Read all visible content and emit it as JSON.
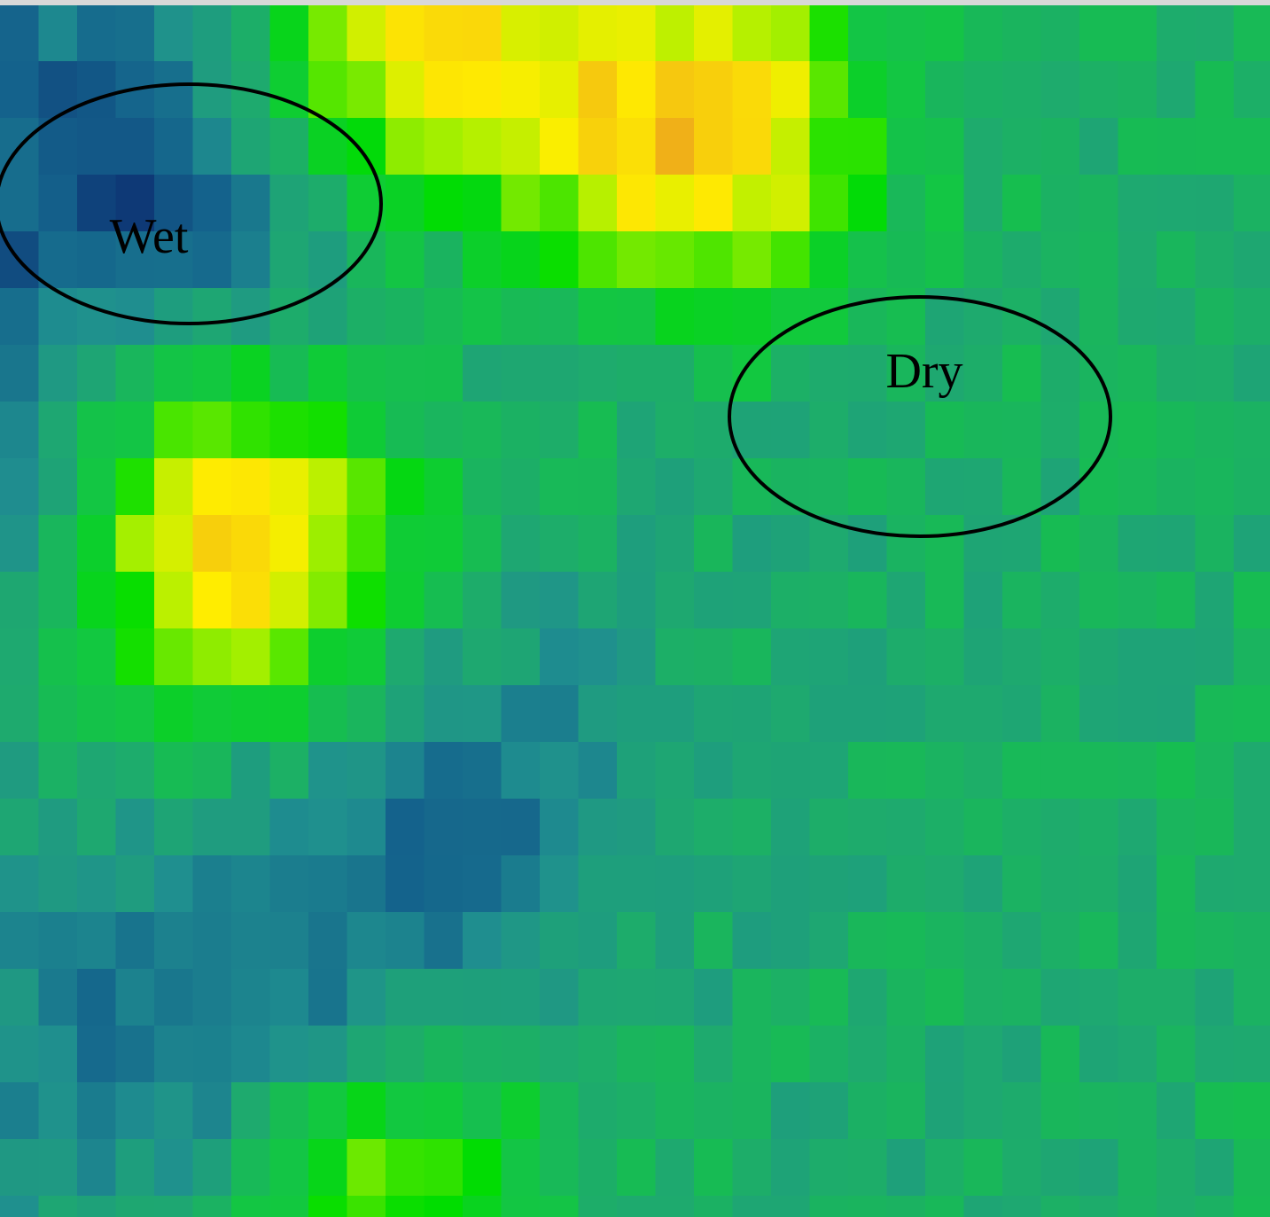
{
  "annotations": {
    "wet": "Wet",
    "dry": "Dry"
  }
}
